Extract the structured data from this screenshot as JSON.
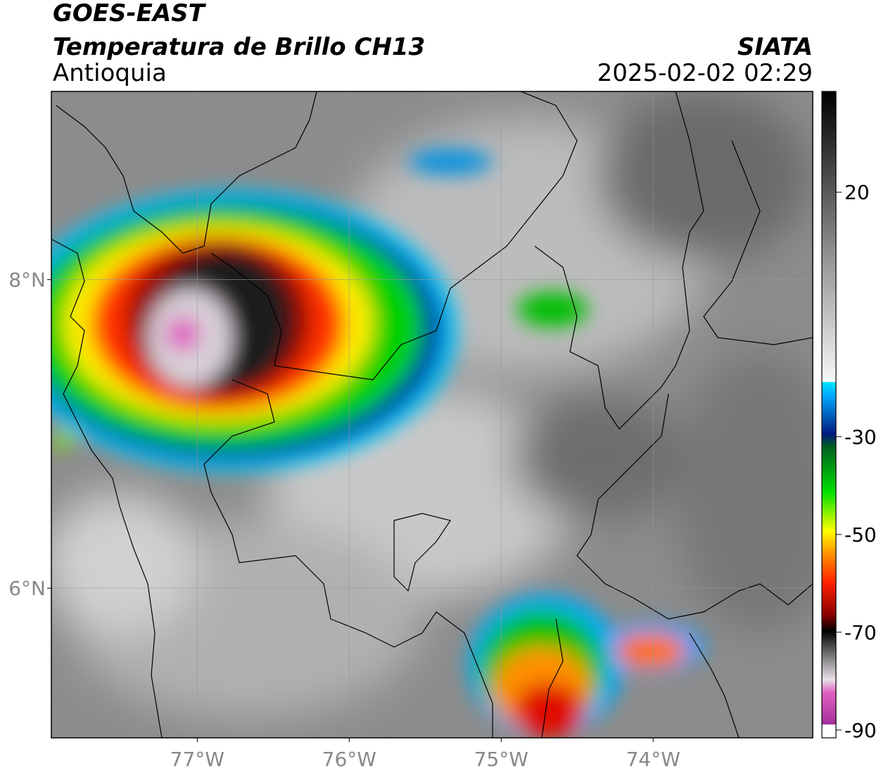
{
  "header": {
    "title": "GOES-EAST",
    "subtitle": "Temperatura de Brillo CH13",
    "region": "Antioquia",
    "source": "SIATA",
    "datetime": "2025-02-02 02:29"
  },
  "map": {
    "xlim": [
      -77.96,
      -72.95
    ],
    "ylim": [
      5.03,
      9.22
    ],
    "xticks": [
      {
        "value": -77,
        "label": "77°W"
      },
      {
        "value": -76,
        "label": "76°W"
      },
      {
        "value": -75,
        "label": "75°W"
      },
      {
        "value": -74,
        "label": "74°W"
      }
    ],
    "yticks": [
      {
        "value": 6,
        "label": "6°N"
      },
      {
        "value": 8,
        "label": "8°N"
      }
    ],
    "grid": true
  },
  "colorbar": {
    "lim": [
      -91.6,
      40.6
    ],
    "ticks": [
      -90,
      -70,
      -50,
      -30,
      20
    ]
  }
}
